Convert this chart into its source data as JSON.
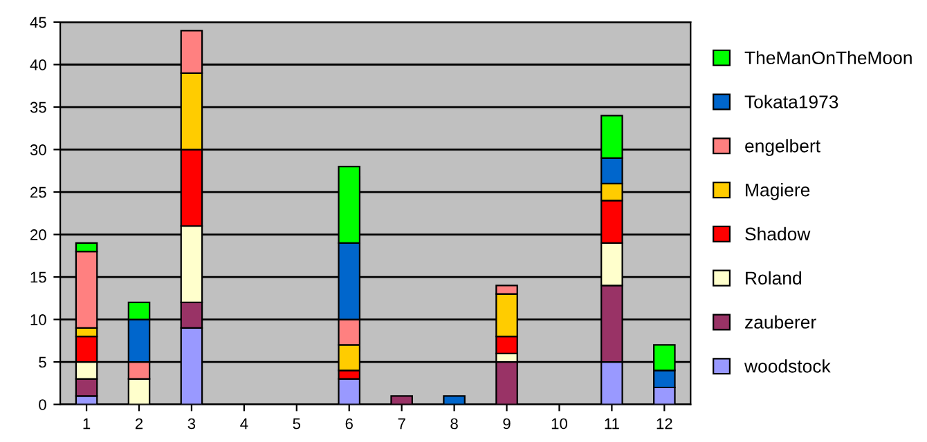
{
  "chart_data": {
    "type": "bar",
    "stacked": true,
    "categories": [
      "1",
      "2",
      "3",
      "4",
      "5",
      "6",
      "7",
      "8",
      "9",
      "10",
      "11",
      "12"
    ],
    "series": [
      {
        "name": "woodstock",
        "color": "#9999ff",
        "values": [
          1,
          0,
          9,
          0,
          0,
          3,
          0,
          0,
          0,
          0,
          5,
          2
        ]
      },
      {
        "name": "zauberer",
        "color": "#993366",
        "values": [
          2,
          0,
          3,
          0,
          0,
          0,
          1,
          0,
          5,
          0,
          9,
          0
        ]
      },
      {
        "name": "Roland",
        "color": "#ffffcc",
        "values": [
          2,
          3,
          9,
          0,
          0,
          0,
          0,
          0,
          1,
          0,
          5,
          0
        ]
      },
      {
        "name": "Shadow",
        "color": "#ff0000",
        "values": [
          3,
          0,
          9,
          0,
          0,
          1,
          0,
          0,
          2,
          0,
          5,
          0
        ]
      },
      {
        "name": "Magiere",
        "color": "#ffcc00",
        "values": [
          1,
          0,
          9,
          0,
          0,
          3,
          0,
          0,
          5,
          0,
          2,
          0
        ]
      },
      {
        "name": "engelbert",
        "color": "#ff8080",
        "values": [
          9,
          2,
          5,
          0,
          0,
          3,
          0,
          0,
          1,
          0,
          0,
          0
        ]
      },
      {
        "name": "Tokata1973",
        "color": "#0066cc",
        "values": [
          0,
          5,
          0,
          0,
          0,
          9,
          0,
          1,
          0,
          0,
          3,
          2
        ]
      },
      {
        "name": "TheManOnTheMoon",
        "color": "#00ff00",
        "values": [
          1,
          2,
          0,
          0,
          0,
          9,
          0,
          0,
          0,
          0,
          5,
          3
        ]
      }
    ],
    "ylim": [
      0,
      45
    ],
    "yticks": [
      0,
      5,
      10,
      15,
      20,
      25,
      30,
      35,
      40,
      45
    ],
    "grid": "y",
    "legend": "right"
  }
}
